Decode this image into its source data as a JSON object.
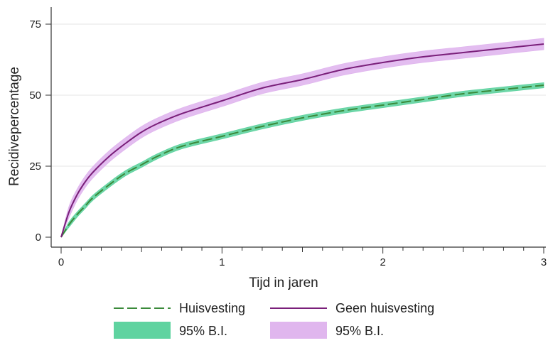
{
  "chart_data": {
    "type": "line",
    "xlabel": "Tijd in jaren",
    "ylabel": "Recidivepercentage",
    "xlim": [
      0,
      3
    ],
    "ylim": [
      0,
      75
    ],
    "xticks": [
      0,
      1,
      2,
      3
    ],
    "xtick_labels": [
      "0",
      "1",
      "2",
      "3"
    ],
    "yticks": [
      0,
      25,
      50,
      75
    ],
    "ytick_labels": [
      "0",
      "25",
      "50",
      "75"
    ],
    "grid": "horizontal",
    "legend_position": "bottom",
    "x": [
      0,
      0.05,
      0.1,
      0.15,
      0.2,
      0.3,
      0.4,
      0.5,
      0.6,
      0.75,
      1.0,
      1.25,
      1.5,
      1.75,
      2.0,
      2.25,
      2.5,
      2.75,
      3.0
    ],
    "series": [
      {
        "name": "Huisvesting",
        "color": "#3a8a3a",
        "line_style": "dashed",
        "values": [
          0,
          4.5,
          8,
          11,
          14,
          18.5,
          22.5,
          25.5,
          28.5,
          32,
          35.5,
          39,
          42,
          44.5,
          46.5,
          48.5,
          50.5,
          52,
          53.5
        ],
        "ci_label": "95% B.I.",
        "ci_color": "#5fd3a0",
        "ci_halfwidth": 0.9
      },
      {
        "name": "Geen huisvesting",
        "color": "#7a1f7a",
        "line_style": "solid",
        "values": [
          0,
          9,
          15,
          19.5,
          23,
          28.5,
          33,
          37,
          40,
          43.5,
          48,
          52.5,
          55.5,
          59,
          61.5,
          63.5,
          65,
          66.5,
          68
        ],
        "ci_label": "95% B.I.",
        "ci_color": "#e0b6ee",
        "ci_halfwidth": 2.0
      }
    ],
    "legend": [
      {
        "label": "Huisvesting",
        "kind": "line",
        "color": "#3a8a3a",
        "dash": true
      },
      {
        "label": "Geen huisvesting",
        "kind": "line",
        "color": "#7a1f7a",
        "dash": false
      },
      {
        "label": "95% B.I.",
        "kind": "band",
        "color": "#5fd3a0"
      },
      {
        "label": "95% B.I.",
        "kind": "band",
        "color": "#e0b6ee"
      }
    ]
  }
}
